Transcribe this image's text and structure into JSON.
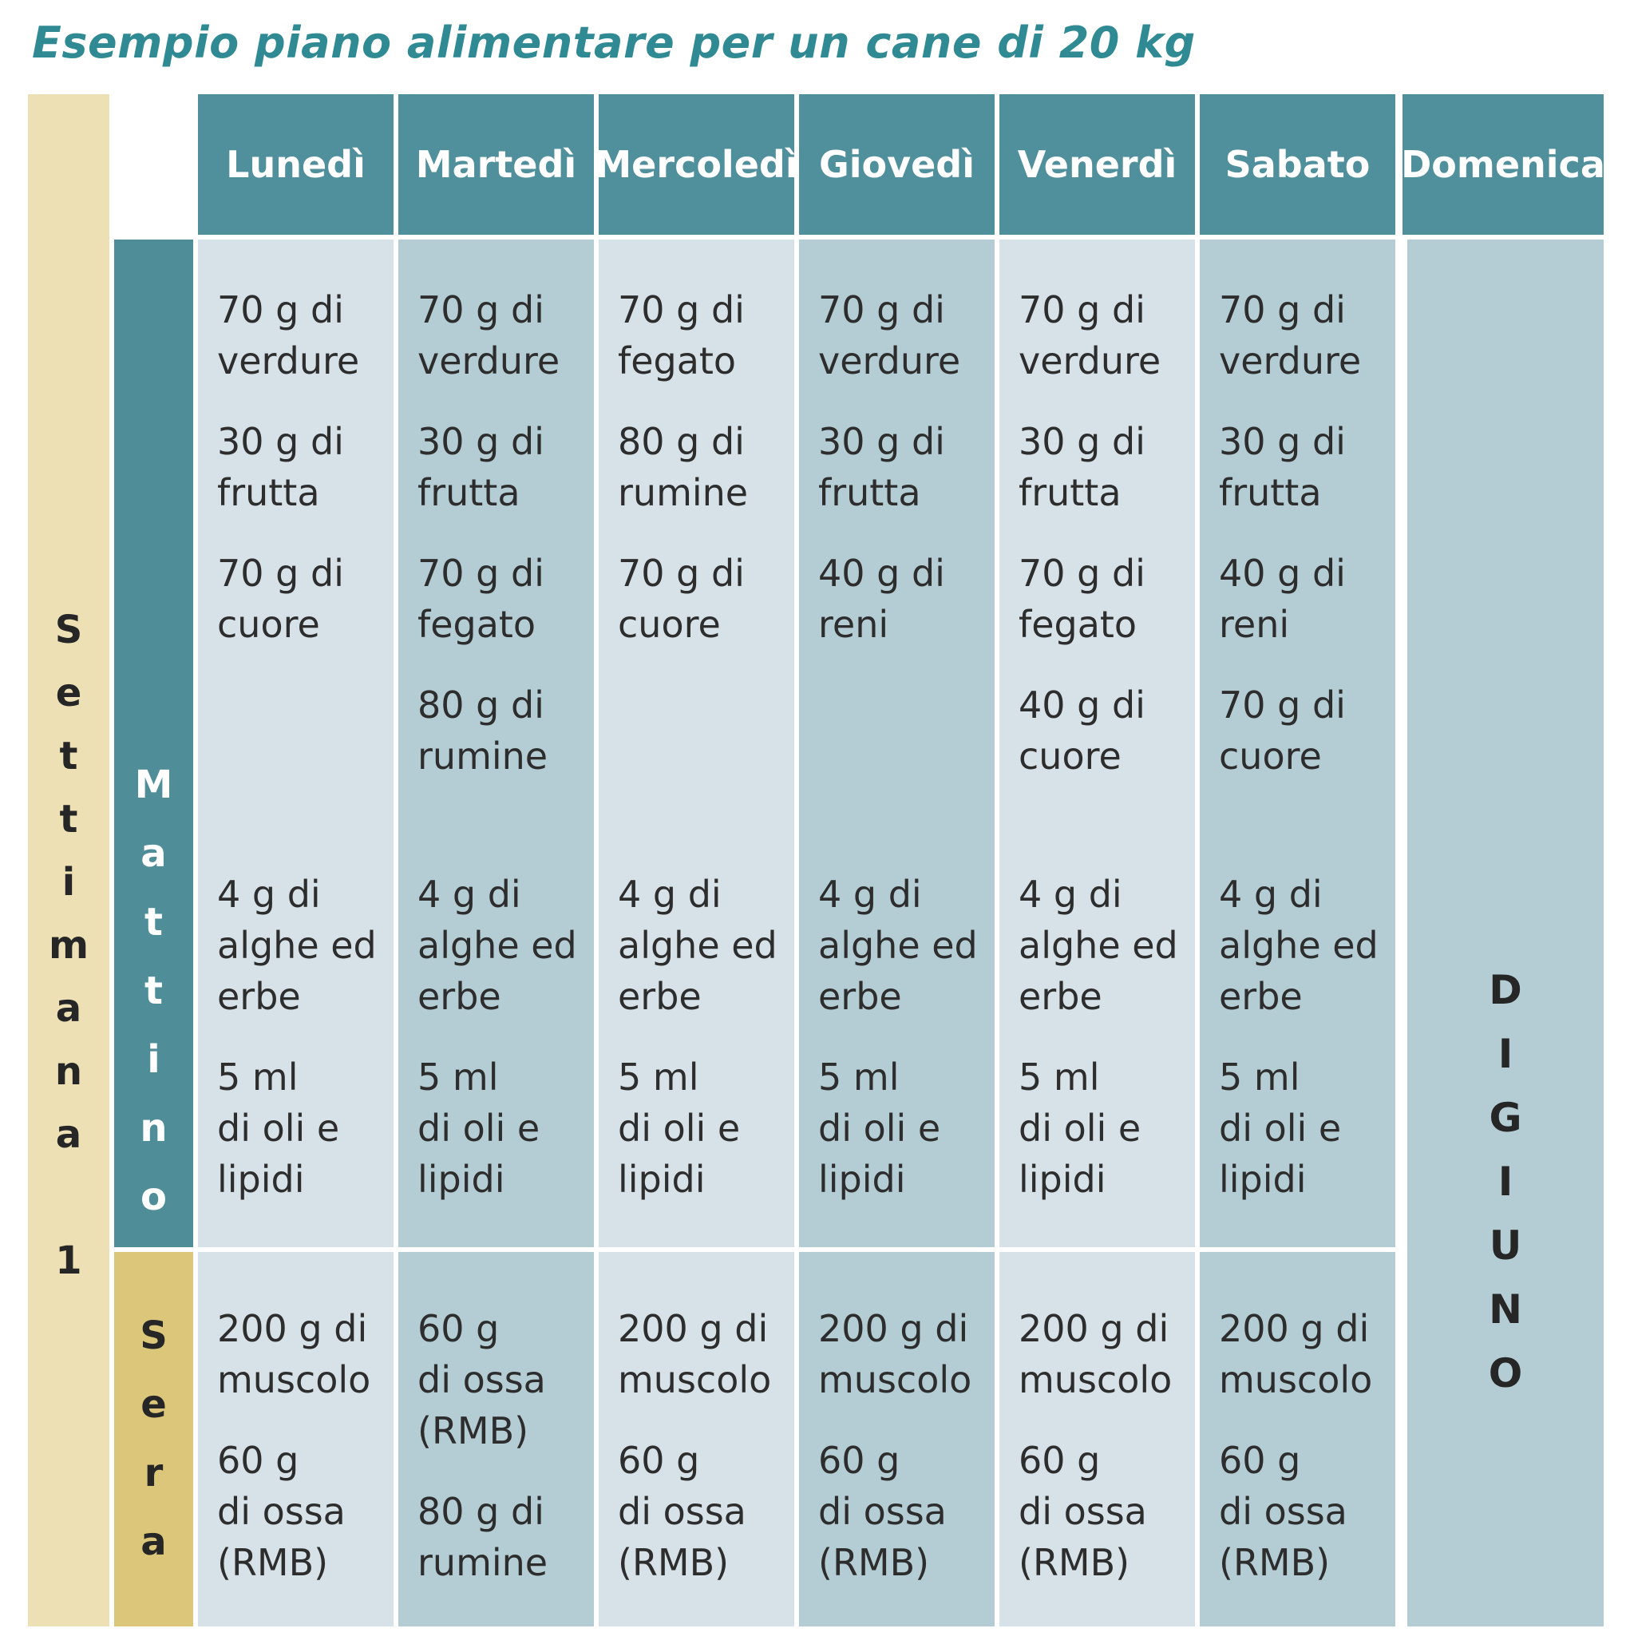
{
  "title": "Esempio piano alimentare per un cane di 20 kg",
  "week_label": [
    "S",
    "e",
    "t",
    "t",
    "i",
    "m",
    "a",
    "n",
    "a",
    "",
    "1"
  ],
  "mattino_label": [
    "M",
    "a",
    "t",
    "t",
    "i",
    "n",
    "o"
  ],
  "sera_label": [
    "S",
    "e",
    "r",
    "a"
  ],
  "days": [
    "Lunedì",
    "Martedì",
    "Mercoledì",
    "Giovedì",
    "Venerdì",
    "Sabato",
    "Domenica"
  ],
  "sunday_label": [
    "D",
    "I",
    "G",
    "I",
    "U",
    "N",
    "O"
  ],
  "mattino": [
    {
      "top": [
        [
          "70 g di",
          "verdure"
        ],
        [
          "30 g di",
          "frutta"
        ],
        [
          "70 g di",
          "cuore"
        ]
      ],
      "bottom": [
        [
          "4 g di",
          "alghe ed",
          "erbe"
        ],
        [
          "5 ml",
          "di oli e",
          "lipidi"
        ]
      ]
    },
    {
      "top": [
        [
          "70 g di",
          "verdure"
        ],
        [
          "30 g di",
          "frutta"
        ],
        [
          "70 g di",
          "fegato"
        ],
        [
          "80 g di",
          "rumine"
        ]
      ],
      "bottom": [
        [
          "4 g di",
          "alghe ed",
          "erbe"
        ],
        [
          "5 ml",
          "di oli e",
          "lipidi"
        ]
      ]
    },
    {
      "top": [
        [
          "70 g di",
          "fegato"
        ],
        [
          "80 g di",
          "rumine"
        ],
        [
          "70 g di",
          "cuore"
        ]
      ],
      "bottom": [
        [
          "4 g di",
          "alghe ed",
          "erbe"
        ],
        [
          "5 ml",
          "di oli e",
          "lipidi"
        ]
      ]
    },
    {
      "top": [
        [
          "70 g di",
          "verdure"
        ],
        [
          "30 g di",
          "frutta"
        ],
        [
          "40 g di",
          "reni"
        ]
      ],
      "bottom": [
        [
          "4 g di",
          "alghe ed",
          "erbe"
        ],
        [
          "5 ml",
          "di oli e",
          "lipidi"
        ]
      ]
    },
    {
      "top": [
        [
          "70 g di",
          "verdure"
        ],
        [
          "30 g di",
          "frutta"
        ],
        [
          "70 g di",
          "fegato"
        ],
        [
          "40 g di",
          "cuore"
        ]
      ],
      "bottom": [
        [
          "4 g di",
          "alghe ed",
          "erbe"
        ],
        [
          "5 ml",
          "di oli e",
          "lipidi"
        ]
      ]
    },
    {
      "top": [
        [
          "70 g di",
          "verdure"
        ],
        [
          "30 g di",
          "frutta"
        ],
        [
          "40 g di",
          "reni"
        ],
        [
          "70 g di",
          "cuore"
        ]
      ],
      "bottom": [
        [
          "4 g di",
          "alghe ed",
          "erbe"
        ],
        [
          "5 ml",
          "di oli e",
          "lipidi"
        ]
      ]
    }
  ],
  "sera": [
    [
      [
        "200 g di",
        "muscolo"
      ],
      [
        "60 g",
        "di ossa",
        "(RMB)"
      ]
    ],
    [
      [
        "60 g",
        "di ossa",
        "(RMB)"
      ],
      [
        "80 g di",
        "rumine"
      ]
    ],
    [
      [
        "200 g di",
        "muscolo"
      ],
      [
        "60 g",
        "di ossa",
        "(RMB)"
      ]
    ],
    [
      [
        "200 g di",
        "muscolo"
      ],
      [
        "60 g",
        "di ossa",
        "(RMB)"
      ]
    ],
    [
      [
        "200 g di",
        "muscolo"
      ],
      [
        "60 g",
        "di ossa",
        "(RMB)"
      ]
    ],
    [
      [
        "200 g di",
        "muscolo"
      ],
      [
        "60 g",
        "di ossa",
        "(RMB)"
      ]
    ]
  ],
  "colors": {
    "header": "#508f9c",
    "week_band": "#ede0b4",
    "sera_band": "#dcc67a",
    "cell_light": "#d6e2e8",
    "cell_dark": "#b4cdd4",
    "title": "#2f8a93"
  }
}
